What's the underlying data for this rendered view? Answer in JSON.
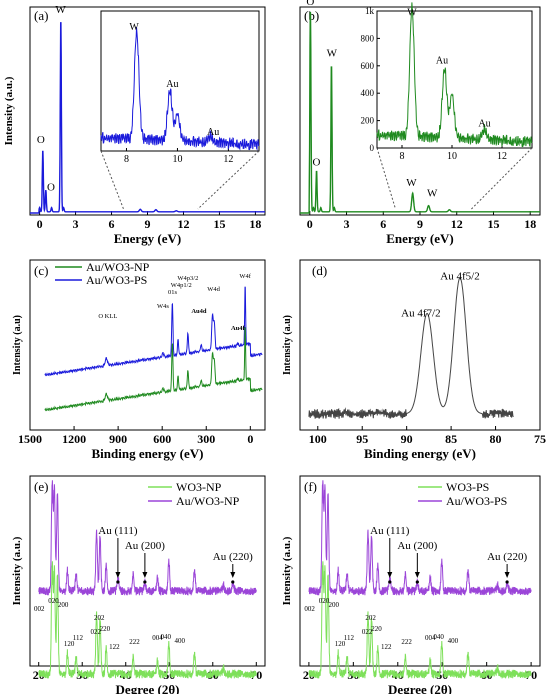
{
  "chart_data": [
    {
      "panel": "(a)",
      "type": "line",
      "color": "#1a1adb",
      "xlabel": "Energy (eV)",
      "ylabel": "Intensity (a.u.)",
      "x_ticks": [
        "0",
        "3",
        "6",
        "9",
        "12",
        "15",
        "18"
      ],
      "xlim": [
        -0.8,
        18.8
      ],
      "ylim": [
        0,
        1.0
      ],
      "series": [
        {
          "peaks": [
            [
              0.0,
              0.02
            ],
            [
              0.27,
              0.3
            ],
            [
              0.52,
              0.02
            ],
            [
              0.52,
              0.085
            ],
            [
              1.0,
              0.02
            ],
            [
              1.77,
              0.94
            ],
            [
              2.0,
              0.02
            ],
            [
              8.4,
              0.012
            ],
            [
              9.7,
              0.01
            ],
            [
              11.4,
              0.005
            ]
          ]
        }
      ],
      "annotations": [
        {
          "text": "O",
          "x": 0.1,
          "y": 0.34
        },
        {
          "text": "O",
          "x": 0.95,
          "y": 0.11
        },
        {
          "text": "W",
          "x": 1.75,
          "y": 0.97
        }
      ],
      "inset": {
        "x_ticks": [
          "8",
          "10",
          "12"
        ],
        "xlim": [
          7.0,
          13.2
        ],
        "ylim": [
          0,
          1.0
        ],
        "peaks": [
          [
            8.4,
            0.78
          ],
          [
            9.7,
            0.37
          ],
          [
            10.0,
            0.2
          ],
          [
            11.3,
            0.05
          ]
        ],
        "annotations": [
          {
            "text": "W",
            "x": 8.3,
            "y": 0.88
          },
          {
            "text": "Au",
            "x": 9.8,
            "y": 0.47
          },
          {
            "text": "Au",
            "x": 11.4,
            "y": 0.13
          }
        ]
      }
    },
    {
      "panel": "(b)",
      "type": "line",
      "color": "#1f8a1f",
      "xlabel": "Energy (eV)",
      "ylabel": "",
      "x_ticks": [
        "0",
        "3",
        "6",
        "9",
        "12",
        "15",
        "18"
      ],
      "xlim": [
        -0.8,
        18.8
      ],
      "ylim": [
        0,
        1.0
      ],
      "series": [
        {
          "peaks": [
            [
              0.0,
              0.02
            ],
            [
              0.05,
              0.98
            ],
            [
              0.3,
              0.02
            ],
            [
              0.55,
              0.2
            ],
            [
              0.9,
              0.02
            ],
            [
              1.77,
              0.72
            ],
            [
              2.0,
              0.02
            ],
            [
              8.4,
              0.09
            ],
            [
              9.7,
              0.03
            ],
            [
              11.4,
              0.01
            ]
          ]
        }
      ],
      "annotations": [
        {
          "text": "O",
          "x": 0.05,
          "y": 1.01
        },
        {
          "text": "O",
          "x": 0.55,
          "y": 0.23
        },
        {
          "text": "W",
          "x": 1.8,
          "y": 0.76
        },
        {
          "text": "W",
          "x": 8.3,
          "y": 0.13
        },
        {
          "text": "W",
          "x": 10.0,
          "y": 0.08
        }
      ],
      "inset": {
        "y_ticks": [
          "0",
          "200",
          "400",
          "600",
          "800",
          "1k"
        ],
        "x_ticks": [
          "8",
          "10",
          "12"
        ],
        "xlim": [
          7.0,
          13.2
        ],
        "ylim": [
          0,
          1000
        ],
        "peaks": [
          [
            8.4,
            960
          ],
          [
            9.7,
            520
          ],
          [
            10.0,
            330
          ],
          [
            11.3,
            80
          ]
        ],
        "annotations": [
          {
            "text": "W",
            "x": 8.4,
            "y": 980
          },
          {
            "text": "Au",
            "x": 9.6,
            "y": 630
          },
          {
            "text": "Au",
            "x": 11.3,
            "y": 170
          }
        ]
      }
    },
    {
      "panel": "(c)",
      "type": "line",
      "xlabel": "Binding energy (eV)",
      "ylabel": "Intensity (a.u)",
      "x_ticks": [
        "1500",
        "1200",
        "900",
        "600",
        "300",
        "0"
      ],
      "xlim": [
        1500,
        -100
      ],
      "x_reversed": true,
      "series": [
        {
          "name": "Au/WO3-NP",
          "color": "#1f8a1f"
        },
        {
          "name": "Au/WO3-PS",
          "color": "#1a1adb"
        }
      ],
      "annotations": [
        {
          "text": "O KLL",
          "x": 970
        },
        {
          "text": "W4s",
          "x": 595
        },
        {
          "text": "01s",
          "x": 530
        },
        {
          "text": "W4p1/2",
          "x": 470
        },
        {
          "text": "W4p3/2",
          "x": 425
        },
        {
          "text": "Au4d",
          "x": 350
        },
        {
          "text": "W4d",
          "x": 250
        },
        {
          "text": "Au4f",
          "x": 85
        },
        {
          "text": "W4f",
          "x": 35
        }
      ]
    },
    {
      "panel": "(d)",
      "type": "line",
      "color": "#444444",
      "xlabel": "Binding energy (eV)",
      "ylabel": "Intensity (a.u)",
      "x_ticks": [
        "100",
        "95",
        "90",
        "85",
        "80",
        "75"
      ],
      "xlim": [
        102,
        75
      ],
      "x_reversed": true,
      "series": [
        {
          "peaks": [
            [
              87.7,
              0.62
            ],
            [
              84.0,
              0.84
            ]
          ]
        }
      ],
      "annotations": [
        {
          "text": "Au 4f7/2",
          "x": 88.4,
          "y": 0.7
        },
        {
          "text": "Au 4f5/2",
          "x": 84.0,
          "y": 0.93
        }
      ]
    },
    {
      "panel": "(e)",
      "type": "line",
      "xlabel": "Degree (2θ)",
      "ylabel": "Intensity (a.u.)",
      "x_ticks": [
        "20",
        "30",
        "40",
        "50",
        "60",
        "70"
      ],
      "xlim": [
        18,
        72
      ],
      "series": [
        {
          "name": "WO3-NP",
          "color": "#7ee05a"
        },
        {
          "name": "Au/WO3-NP",
          "color": "#9b45d8"
        }
      ],
      "annotations": [
        {
          "text": "Au (111)",
          "x": 38.2
        },
        {
          "text": "Au (200)",
          "x": 44.4
        },
        {
          "text": "Au (220)",
          "x": 64.6
        },
        {
          "text": "002",
          "x": 22.2
        },
        {
          "text": "020",
          "x": 23.4
        },
        {
          "text": "200",
          "x": 25.6
        },
        {
          "text": "120",
          "x": 27.0
        },
        {
          "text": "112",
          "x": 29.0
        },
        {
          "text": "022",
          "x": 33.1
        },
        {
          "text": "202",
          "x": 33.9
        },
        {
          "text": "220",
          "x": 35.2
        },
        {
          "text": "122",
          "x": 37.4
        },
        {
          "text": "222",
          "x": 42.0
        },
        {
          "text": "004",
          "x": 47.3
        },
        {
          "text": "040",
          "x": 49.2
        },
        {
          "text": "400",
          "x": 52.4
        }
      ]
    },
    {
      "panel": "(f)",
      "type": "line",
      "xlabel": "Degree (2θ)",
      "ylabel": "Intensity (a.u.)",
      "x_ticks": [
        "20",
        "30",
        "40",
        "50",
        "60",
        "70"
      ],
      "xlim": [
        18,
        72
      ],
      "series": [
        {
          "name": "WO3-PS",
          "color": "#7ee05a"
        },
        {
          "name": "Au/WO3-PS",
          "color": "#9b45d8"
        }
      ],
      "annotations": [
        {
          "text": "Au (111)",
          "x": 38.2
        },
        {
          "text": "Au (200)",
          "x": 44.4
        },
        {
          "text": "Au (220)",
          "x": 64.6
        },
        {
          "text": "002",
          "x": 22.2
        },
        {
          "text": "020",
          "x": 23.4
        },
        {
          "text": "200",
          "x": 25.6
        },
        {
          "text": "120",
          "x": 27.0
        },
        {
          "text": "112",
          "x": 29.0
        },
        {
          "text": "022",
          "x": 33.1
        },
        {
          "text": "202",
          "x": 33.9
        },
        {
          "text": "220",
          "x": 35.2
        },
        {
          "text": "122",
          "x": 37.4
        },
        {
          "text": "222",
          "x": 42.0
        },
        {
          "text": "004",
          "x": 47.3
        },
        {
          "text": "040",
          "x": 49.2
        },
        {
          "text": "400",
          "x": 52.4
        }
      ]
    }
  ]
}
